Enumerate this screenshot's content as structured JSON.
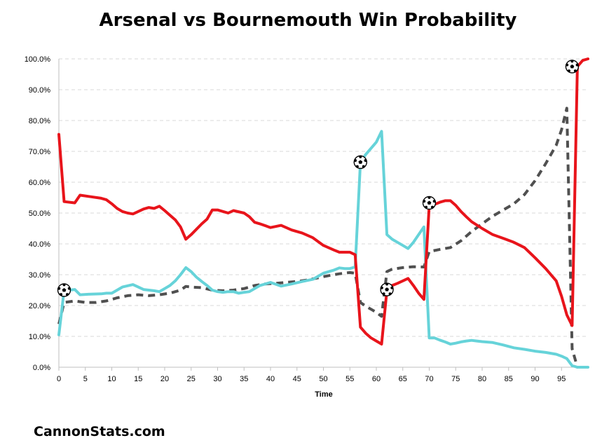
{
  "title": "Arsenal vs Bournemouth Win Probability",
  "watermark": "CannonStats.com",
  "colors": {
    "home_win": "#e8141b",
    "away_win": "#66d3d9",
    "draw": "#505050",
    "grid": "#d9d9d9",
    "axis": "#bfbfbf"
  },
  "chart_data": {
    "type": "line",
    "title": "Arsenal vs Bournemouth Win Probability",
    "xlabel": "Time",
    "ylabel": "",
    "xlim": [
      0,
      100
    ],
    "ylim": [
      0,
      1
    ],
    "x_ticks": [
      0,
      5,
      10,
      15,
      20,
      25,
      30,
      35,
      40,
      45,
      50,
      55,
      60,
      65,
      70,
      75,
      80,
      85,
      90,
      95
    ],
    "y_ticks": [
      "0.0%",
      "10.0%",
      "20.0%",
      "30.0%",
      "40.0%",
      "50.0%",
      "60.0%",
      "70.0%",
      "80.0%",
      "90.0%",
      "100.0%"
    ],
    "grid": "horizontal dashed",
    "legend": "none",
    "series": [
      {
        "key": "red",
        "style": "solid",
        "color": "#e8141b",
        "x": [
          0,
          1,
          3,
          4,
          6,
          8,
          9,
          10,
          11,
          12,
          13,
          14,
          15,
          16,
          17,
          18,
          19,
          20,
          21,
          22,
          23,
          24,
          25,
          27,
          28,
          29,
          30,
          31,
          32,
          33,
          35,
          36,
          37,
          38,
          40,
          42,
          44,
          46,
          48,
          50,
          52,
          53,
          55,
          56,
          57,
          58,
          59,
          60,
          61,
          62,
          63,
          64,
          65,
          66,
          67,
          68,
          69,
          70,
          71,
          72,
          73,
          74,
          75,
          76,
          77,
          78,
          80,
          82,
          84,
          86,
          88,
          90,
          92,
          94,
          95,
          96,
          97,
          98,
          99,
          100
        ],
        "y": [
          0.755,
          0.537,
          0.533,
          0.558,
          0.553,
          0.548,
          0.543,
          0.53,
          0.515,
          0.505,
          0.5,
          0.497,
          0.505,
          0.513,
          0.518,
          0.515,
          0.522,
          0.508,
          0.493,
          0.478,
          0.455,
          0.415,
          0.43,
          0.465,
          0.48,
          0.51,
          0.51,
          0.505,
          0.5,
          0.508,
          0.5,
          0.488,
          0.47,
          0.465,
          0.453,
          0.46,
          0.445,
          0.435,
          0.42,
          0.395,
          0.38,
          0.373,
          0.373,
          0.365,
          0.13,
          0.11,
          0.095,
          0.085,
          0.075,
          0.25,
          0.265,
          0.272,
          0.28,
          0.288,
          0.265,
          0.24,
          0.22,
          0.525,
          0.528,
          0.535,
          0.54,
          0.54,
          0.525,
          0.505,
          0.488,
          0.472,
          0.45,
          0.43,
          0.418,
          0.405,
          0.388,
          0.355,
          0.32,
          0.28,
          0.23,
          0.17,
          0.135,
          0.975,
          0.995,
          1.0
        ]
      },
      {
        "key": "cyan",
        "style": "solid",
        "color": "#66d3d9",
        "x": [
          0,
          1,
          2,
          3,
          4,
          6,
          8,
          9,
          10,
          11,
          12,
          14,
          15,
          16,
          17,
          18,
          19,
          20,
          21,
          22,
          23,
          24,
          25,
          26,
          27,
          28,
          29,
          30,
          31,
          32,
          33,
          34,
          35,
          36,
          38,
          40,
          42,
          44,
          46,
          48,
          50,
          52,
          53,
          54,
          55,
          56,
          57,
          58,
          59,
          60,
          61,
          62,
          63,
          64,
          65,
          66,
          67,
          68,
          69,
          70,
          71,
          72,
          73,
          74,
          75,
          76,
          77,
          78,
          79,
          80,
          82,
          84,
          86,
          88,
          90,
          92,
          94,
          95,
          96,
          97,
          98,
          100
        ],
        "y": [
          0.105,
          0.25,
          0.25,
          0.252,
          0.235,
          0.237,
          0.238,
          0.24,
          0.24,
          0.25,
          0.26,
          0.268,
          0.26,
          0.252,
          0.25,
          0.248,
          0.245,
          0.255,
          0.265,
          0.28,
          0.3,
          0.323,
          0.31,
          0.292,
          0.278,
          0.265,
          0.25,
          0.245,
          0.243,
          0.245,
          0.245,
          0.24,
          0.243,
          0.245,
          0.265,
          0.275,
          0.263,
          0.27,
          0.278,
          0.285,
          0.305,
          0.315,
          0.322,
          0.32,
          0.32,
          0.325,
          0.665,
          0.69,
          0.71,
          0.73,
          0.765,
          0.43,
          0.415,
          0.405,
          0.395,
          0.385,
          0.405,
          0.43,
          0.455,
          0.095,
          0.095,
          0.088,
          0.082,
          0.075,
          0.078,
          0.082,
          0.085,
          0.087,
          0.085,
          0.083,
          0.08,
          0.072,
          0.063,
          0.058,
          0.052,
          0.048,
          0.042,
          0.036,
          0.028,
          0.005,
          0.0,
          0.0
        ]
      },
      {
        "key": "draw",
        "style": "dashed",
        "color": "#505050",
        "x": [
          0,
          1,
          3,
          5,
          7,
          9,
          11,
          13,
          15,
          17,
          19,
          21,
          23,
          24,
          25,
          27,
          29,
          31,
          33,
          35,
          37,
          39,
          41,
          43,
          45,
          47,
          49,
          51,
          53,
          55,
          56,
          57,
          58,
          59,
          60,
          61,
          62,
          63,
          65,
          67,
          69,
          70,
          72,
          74,
          76,
          78,
          80,
          82,
          84,
          86,
          88,
          90,
          92,
          94,
          95,
          96,
          97,
          98,
          100
        ],
        "y": [
          0.14,
          0.21,
          0.215,
          0.21,
          0.21,
          0.215,
          0.225,
          0.232,
          0.235,
          0.232,
          0.235,
          0.24,
          0.25,
          0.262,
          0.26,
          0.258,
          0.25,
          0.248,
          0.25,
          0.255,
          0.265,
          0.27,
          0.272,
          0.275,
          0.278,
          0.283,
          0.29,
          0.297,
          0.303,
          0.307,
          0.305,
          0.21,
          0.198,
          0.188,
          0.178,
          0.165,
          0.31,
          0.318,
          0.323,
          0.326,
          0.325,
          0.375,
          0.382,
          0.388,
          0.41,
          0.44,
          0.465,
          0.49,
          0.51,
          0.53,
          0.56,
          0.605,
          0.66,
          0.72,
          0.77,
          0.84,
          0.06,
          0.0,
          0.0
        ]
      }
    ],
    "goal_markers": [
      {
        "x": 1,
        "y": 0.25
      },
      {
        "x": 57,
        "y": 0.665
      },
      {
        "x": 62,
        "y": 0.252
      },
      {
        "x": 70,
        "y": 0.533
      },
      {
        "x": 97,
        "y": 0.975
      }
    ]
  }
}
